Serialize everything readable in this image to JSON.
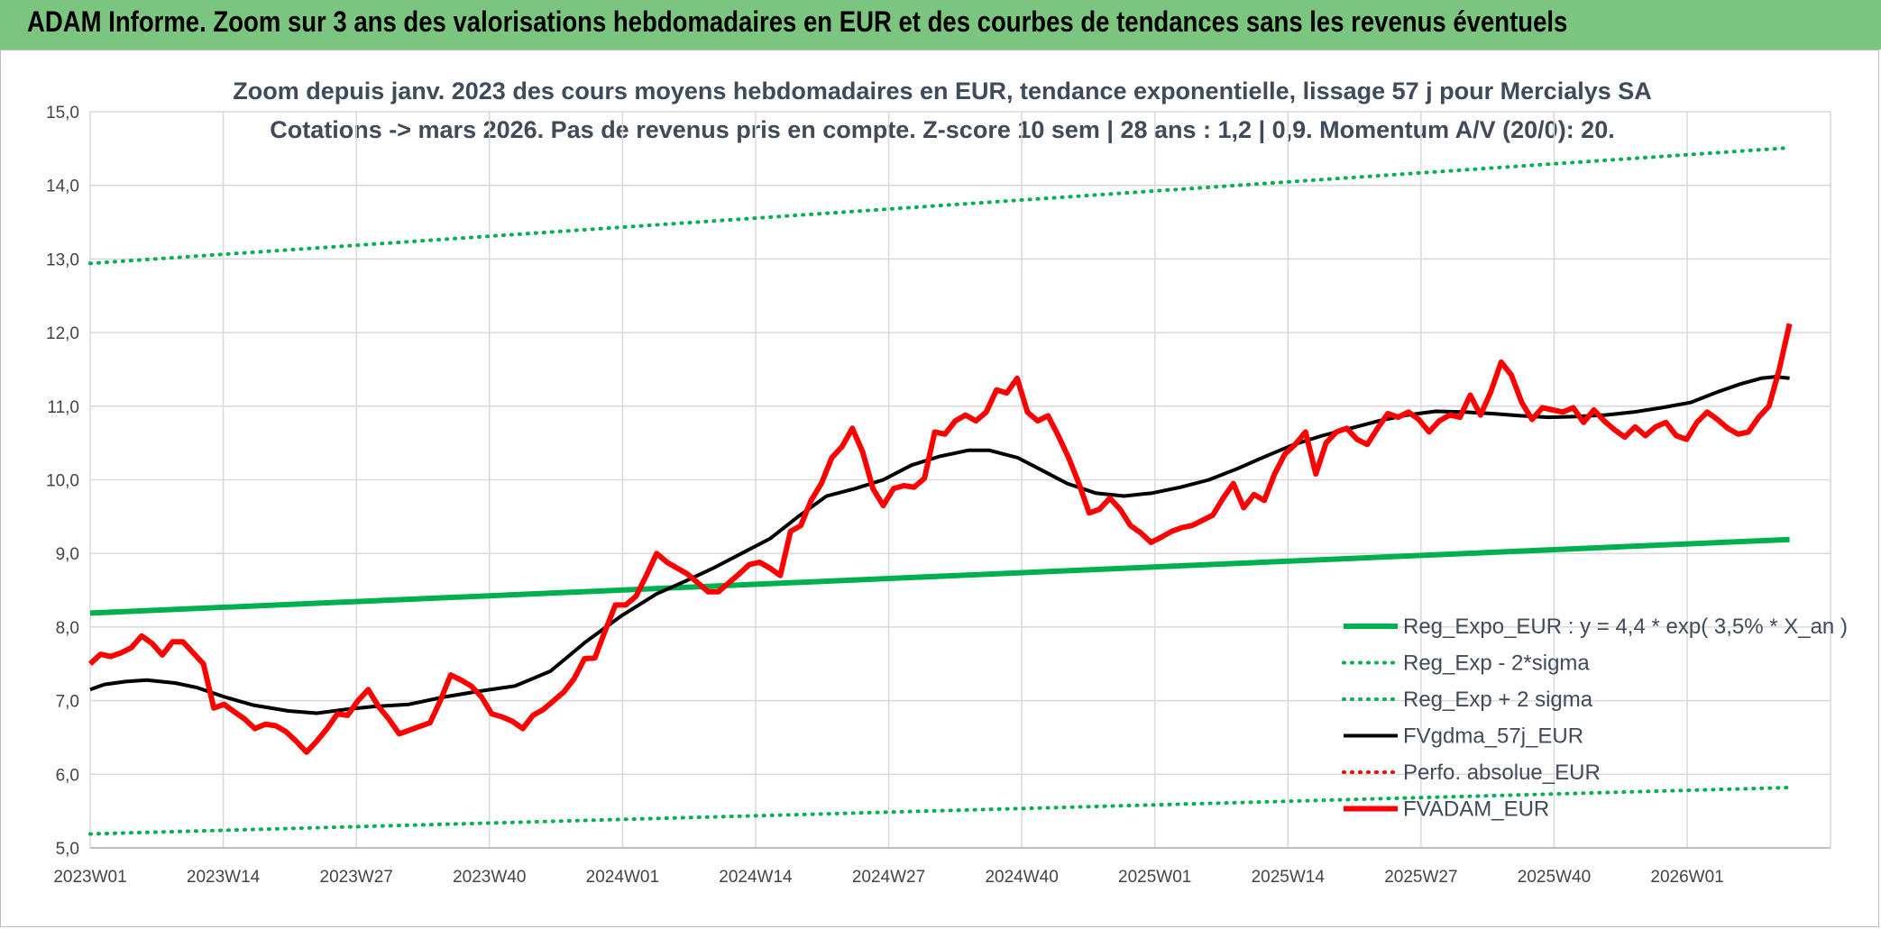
{
  "header": {
    "title": "ADAM Informe. Zoom sur 3 ans des valorisations hebdomadaires en EUR et des courbes de tendances sans les revenus éventuels"
  },
  "colors": {
    "header_bg": "#7cc57e",
    "green": "#00b050",
    "black": "#000000",
    "red": "#ff0000",
    "grid": "#d9d9d9"
  },
  "chart_data": {
    "type": "line",
    "title_line1": "Zoom depuis janv. 2023 des cours moyens hebdomadaires en EUR, tendance exponentielle, lissage 57 j pour Mercialys SA",
    "title_line2": "Cotations -> mars 2026. Pas de revenus pris en compte. Z-score 10 sem | 28 ans : 1,2 | 0,9. Momentum A/V (20/0): 20.",
    "x_tick_labels": [
      "2023W01",
      "2023W14",
      "2023W27",
      "2023W40",
      "2024W01",
      "2024W14",
      "2024W27",
      "2024W40",
      "2025W01",
      "2025W14",
      "2025W27",
      "2025W40",
      "2026W01"
    ],
    "y_tick_labels": [
      "5,0",
      "6,0",
      "7,0",
      "8,0",
      "9,0",
      "10,0",
      "11,0",
      "12,0",
      "13,0",
      "14,0",
      "15,0"
    ],
    "ylim": [
      5,
      15
    ],
    "n_weeks": 166,
    "grid": true,
    "legend_position": "bottom-right",
    "series": [
      {
        "name": "Reg_Expo_EUR : y = 4,4 * exp( 3,5% *  X_an )",
        "color": "#00b050",
        "style": "solid-thick",
        "points": [
          [
            0,
            8.19
          ],
          [
            165,
            9.19
          ]
        ]
      },
      {
        "name": "Reg_Exp - 2*sigma",
        "color": "#00b050",
        "style": "dotted",
        "points": [
          [
            0,
            5.19
          ],
          [
            165,
            5.82
          ]
        ]
      },
      {
        "name": "Reg_Exp + 2 sigma",
        "color": "#00b050",
        "style": "dotted",
        "points": [
          [
            0,
            12.94
          ],
          [
            165,
            14.51
          ]
        ]
      },
      {
        "name": "FVgdma_57j_EUR",
        "color": "#000000",
        "style": "solid",
        "points": [
          [
            0,
            7.15
          ],
          [
            2,
            7.22
          ],
          [
            5,
            7.26
          ],
          [
            8,
            7.28
          ],
          [
            12,
            7.24
          ],
          [
            15,
            7.18
          ],
          [
            19,
            7.05
          ],
          [
            23,
            6.94
          ],
          [
            28,
            6.86
          ],
          [
            32,
            6.83
          ],
          [
            36,
            6.88
          ],
          [
            40,
            6.92
          ],
          [
            45,
            6.95
          ],
          [
            50,
            7.05
          ],
          [
            55,
            7.13
          ],
          [
            60,
            7.2
          ],
          [
            65,
            7.4
          ],
          [
            70,
            7.8
          ],
          [
            75,
            8.15
          ],
          [
            80,
            8.45
          ],
          [
            84,
            8.62
          ],
          [
            88,
            8.8
          ],
          [
            92,
            9.0
          ],
          [
            96,
            9.2
          ],
          [
            100,
            9.5
          ],
          [
            104,
            9.78
          ],
          [
            108,
            9.88
          ],
          [
            112,
            10.0
          ],
          [
            116,
            10.2
          ],
          [
            120,
            10.32
          ],
          [
            124,
            10.4
          ],
          [
            127,
            10.4
          ],
          [
            131,
            10.3
          ],
          [
            135,
            10.1
          ],
          [
            138,
            9.95
          ],
          [
            142,
            9.82
          ],
          [
            146,
            9.78
          ],
          [
            150,
            9.82
          ],
          [
            154,
            9.9
          ],
          [
            158,
            10.0
          ],
          [
            162,
            10.15
          ],
          [
            166,
            10.32
          ],
          [
            170,
            10.48
          ],
          [
            174,
            10.6
          ],
          [
            178,
            10.7
          ],
          [
            182,
            10.8
          ],
          [
            186,
            10.88
          ],
          [
            190,
            10.93
          ],
          [
            194,
            10.92
          ],
          [
            198,
            10.9
          ],
          [
            202,
            10.87
          ],
          [
            206,
            10.85
          ],
          [
            210,
            10.86
          ],
          [
            214,
            10.88
          ],
          [
            218,
            10.92
          ],
          [
            222,
            10.98
          ],
          [
            226,
            11.05
          ],
          [
            230,
            11.2
          ],
          [
            233,
            11.3
          ],
          [
            236,
            11.38
          ],
          [
            238,
            11.4
          ],
          [
            240,
            11.38
          ]
        ]
      },
      {
        "name": "Perfo. absolue_EUR",
        "color": "#ff0000",
        "style": "dotted",
        "points": []
      },
      {
        "name": "FVADAM_EUR",
        "color": "#ff0000",
        "style": "solid-thick",
        "points": [
          [
            0,
            7.5
          ],
          [
            1,
            7.63
          ],
          [
            2,
            7.6
          ],
          [
            3,
            7.65
          ],
          [
            4,
            7.72
          ],
          [
            5,
            7.88
          ],
          [
            6,
            7.78
          ],
          [
            7,
            7.62
          ],
          [
            8,
            7.8
          ],
          [
            9,
            7.8
          ],
          [
            10,
            7.65
          ],
          [
            11,
            7.5
          ],
          [
            12,
            6.9
          ],
          [
            13,
            6.95
          ],
          [
            14,
            6.85
          ],
          [
            15,
            6.75
          ],
          [
            16,
            6.62
          ],
          [
            17,
            6.68
          ],
          [
            18,
            6.66
          ],
          [
            19,
            6.58
          ],
          [
            20,
            6.45
          ],
          [
            21,
            6.3
          ],
          [
            22,
            6.45
          ],
          [
            23,
            6.62
          ],
          [
            24,
            6.82
          ],
          [
            25,
            6.8
          ],
          [
            26,
            7.0
          ],
          [
            27,
            7.15
          ],
          [
            28,
            6.92
          ],
          [
            29,
            6.75
          ],
          [
            30,
            6.55
          ],
          [
            31,
            6.6
          ],
          [
            32,
            6.65
          ],
          [
            33,
            6.7
          ],
          [
            34,
            7.0
          ],
          [
            35,
            7.35
          ],
          [
            36,
            7.28
          ],
          [
            37,
            7.2
          ],
          [
            38,
            7.05
          ],
          [
            39,
            6.82
          ],
          [
            40,
            6.78
          ],
          [
            41,
            6.72
          ],
          [
            42,
            6.62
          ],
          [
            43,
            6.8
          ],
          [
            44,
            6.88
          ],
          [
            45,
            7.0
          ],
          [
            46,
            7.12
          ],
          [
            47,
            7.3
          ],
          [
            48,
            7.57
          ],
          [
            49,
            7.58
          ],
          [
            50,
            7.95
          ],
          [
            51,
            8.3
          ],
          [
            52,
            8.3
          ],
          [
            53,
            8.42
          ],
          [
            54,
            8.7
          ],
          [
            55,
            9.0
          ],
          [
            56,
            8.88
          ],
          [
            57,
            8.8
          ],
          [
            58,
            8.72
          ],
          [
            59,
            8.6
          ],
          [
            60,
            8.48
          ],
          [
            61,
            8.48
          ],
          [
            62,
            8.6
          ],
          [
            63,
            8.72
          ],
          [
            64,
            8.85
          ],
          [
            65,
            8.88
          ],
          [
            66,
            8.8
          ],
          [
            67,
            8.7
          ],
          [
            68,
            9.3
          ],
          [
            69,
            9.38
          ],
          [
            70,
            9.72
          ],
          [
            71,
            9.95
          ],
          [
            72,
            10.3
          ],
          [
            73,
            10.45
          ],
          [
            74,
            10.7
          ],
          [
            75,
            10.38
          ],
          [
            76,
            9.88
          ],
          [
            77,
            9.65
          ],
          [
            78,
            9.88
          ],
          [
            79,
            9.92
          ],
          [
            80,
            9.9
          ],
          [
            81,
            10.02
          ],
          [
            82,
            10.65
          ],
          [
            83,
            10.62
          ],
          [
            84,
            10.8
          ],
          [
            85,
            10.88
          ],
          [
            86,
            10.8
          ],
          [
            87,
            10.92
          ],
          [
            88,
            11.22
          ],
          [
            89,
            11.18
          ],
          [
            90,
            11.38
          ],
          [
            91,
            10.92
          ],
          [
            92,
            10.8
          ],
          [
            93,
            10.87
          ],
          [
            94,
            10.6
          ],
          [
            95,
            10.3
          ],
          [
            96,
            9.95
          ],
          [
            97,
            9.55
          ],
          [
            98,
            9.6
          ],
          [
            99,
            9.75
          ],
          [
            100,
            9.6
          ],
          [
            101,
            9.38
          ],
          [
            102,
            9.28
          ],
          [
            103,
            9.15
          ],
          [
            104,
            9.22
          ],
          [
            105,
            9.3
          ],
          [
            106,
            9.35
          ],
          [
            107,
            9.38
          ],
          [
            108,
            9.45
          ],
          [
            109,
            9.52
          ],
          [
            110,
            9.75
          ],
          [
            111,
            9.95
          ],
          [
            112,
            9.62
          ],
          [
            113,
            9.8
          ],
          [
            114,
            9.72
          ],
          [
            115,
            10.08
          ],
          [
            116,
            10.35
          ],
          [
            117,
            10.48
          ],
          [
            118,
            10.65
          ],
          [
            119,
            10.08
          ],
          [
            120,
            10.5
          ],
          [
            121,
            10.65
          ],
          [
            122,
            10.7
          ],
          [
            123,
            10.55
          ],
          [
            124,
            10.48
          ],
          [
            125,
            10.7
          ],
          [
            126,
            10.9
          ],
          [
            127,
            10.85
          ],
          [
            128,
            10.92
          ],
          [
            129,
            10.82
          ],
          [
            130,
            10.65
          ],
          [
            131,
            10.8
          ],
          [
            132,
            10.88
          ],
          [
            133,
            10.85
          ],
          [
            134,
            11.15
          ],
          [
            135,
            10.88
          ],
          [
            136,
            11.2
          ],
          [
            137,
            11.6
          ],
          [
            138,
            11.42
          ],
          [
            139,
            11.05
          ],
          [
            140,
            10.82
          ],
          [
            141,
            10.98
          ],
          [
            142,
            10.95
          ],
          [
            143,
            10.92
          ],
          [
            144,
            10.98
          ],
          [
            145,
            10.78
          ],
          [
            146,
            10.95
          ],
          [
            147,
            10.8
          ],
          [
            148,
            10.68
          ],
          [
            149,
            10.58
          ],
          [
            150,
            10.72
          ],
          [
            151,
            10.6
          ],
          [
            152,
            10.72
          ],
          [
            153,
            10.78
          ],
          [
            154,
            10.6
          ],
          [
            155,
            10.55
          ],
          [
            156,
            10.78
          ],
          [
            157,
            10.92
          ],
          [
            158,
            10.82
          ],
          [
            159,
            10.7
          ],
          [
            160,
            10.62
          ],
          [
            161,
            10.65
          ],
          [
            162,
            10.85
          ],
          [
            163,
            11.0
          ],
          [
            164,
            11.5
          ],
          [
            165,
            12.12
          ]
        ]
      }
    ]
  }
}
